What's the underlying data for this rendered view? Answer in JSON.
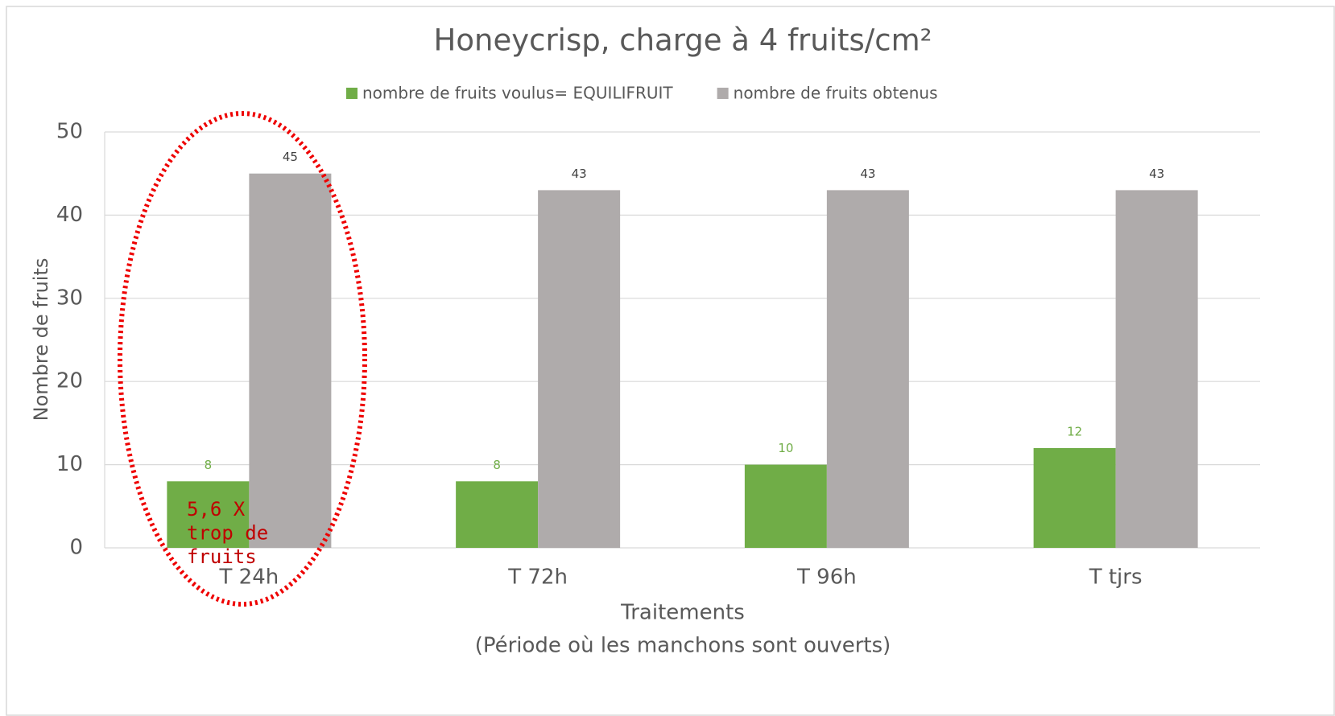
{
  "chart_data": {
    "type": "bar",
    "title": "Honeycrisp, charge à 4 fruits/cm²",
    "ylabel": "Nombre de fruits",
    "xlabel": "Traitements",
    "xlabel_note": "(Période où les manchons sont ouverts)",
    "categories": [
      "T 24h",
      "T 72h",
      "T 96h",
      "T tjrs"
    ],
    "series": [
      {
        "name": "nombre de fruits voulus= EQUILIFRUIT",
        "color": "#70ad47",
        "values": [
          8,
          8,
          10,
          12
        ]
      },
      {
        "name": "nombre de fruits obtenus",
        "color": "#afabab",
        "values": [
          45,
          43,
          43,
          43
        ]
      }
    ],
    "ylim": [
      0,
      50
    ],
    "yticks": [
      0,
      10,
      20,
      30,
      40,
      50
    ],
    "grid": true,
    "legend": "top",
    "annotation": [
      "5,6 X",
      "trop de",
      "fruits"
    ]
  }
}
